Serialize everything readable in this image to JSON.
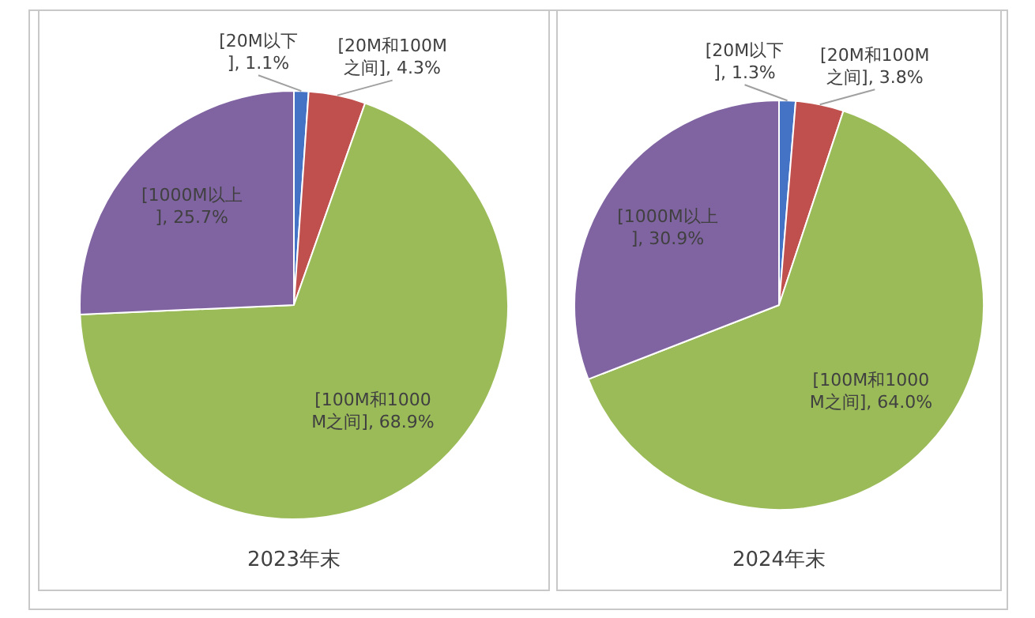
{
  "chart_data": [
    {
      "type": "pie",
      "title": "2023年末",
      "categories": [
        "[20M以下]",
        "[20M和100M之间]",
        "[100M和1000M之间]",
        "[1000M以上]"
      ],
      "values": [
        1.1,
        4.3,
        68.9,
        25.7
      ],
      "value_labels": [
        "1.1%",
        "4.3%",
        "68.9%",
        "25.7%"
      ],
      "colors": [
        "#4472c4",
        "#c0504d",
        "#9bbb59",
        "#8064a2"
      ],
      "legend": false
    },
    {
      "type": "pie",
      "title": "2024年末",
      "categories": [
        "[20M以下]",
        "[20M和100M之间]",
        "[100M和1000M之间]",
        "[1000M以上]"
      ],
      "values": [
        1.3,
        3.8,
        64.0,
        30.9
      ],
      "value_labels": [
        "1.3%",
        "3.8%",
        "64.0%",
        "30.9%"
      ],
      "colors": [
        "#4472c4",
        "#c0504d",
        "#9bbb59",
        "#8064a2"
      ],
      "legend": false
    }
  ]
}
